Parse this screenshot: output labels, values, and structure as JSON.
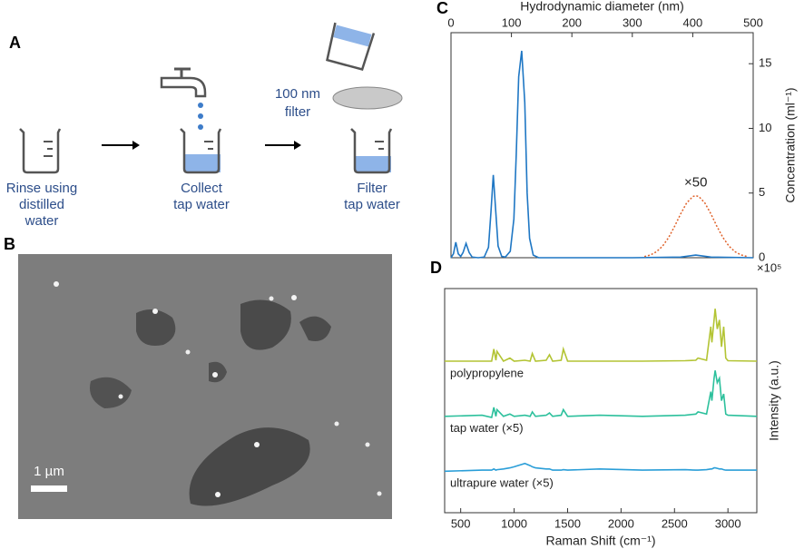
{
  "panel_a": {
    "letter": "A",
    "steps": [
      [
        "Rinse using",
        "distilled",
        "water"
      ],
      [
        "Collect",
        "tap water"
      ],
      [
        "Filter",
        "tap water"
      ]
    ],
    "filter_label": [
      "100 nm",
      "filter"
    ]
  },
  "panel_b": {
    "letter": "B",
    "scale_bar": "1 µm"
  },
  "chart_data": [
    {
      "type": "line",
      "panel": "C",
      "x_label": "Hydrodynamic diameter (nm)",
      "y_label": "Concentration (ml⁻¹)",
      "y_multiplier": "×10⁵",
      "annotation": "×50",
      "xlim": [
        0,
        500
      ],
      "xticks": [
        0,
        100,
        200,
        300,
        400,
        500
      ],
      "ylim": [
        0,
        17.4
      ],
      "yticks": [
        0,
        5,
        10,
        15
      ],
      "series": [
        {
          "color": "#1f77c4",
          "style": "solid",
          "x": [
            0,
            4,
            8,
            12,
            16,
            20,
            25,
            30,
            35,
            45,
            55,
            62,
            66,
            70,
            74,
            78,
            84,
            90,
            98,
            104,
            108,
            112,
            117,
            122,
            126,
            130,
            136,
            145,
            160,
            200,
            300,
            380,
            405,
            430,
            500
          ],
          "values": [
            0,
            0.3,
            1.2,
            0.3,
            0.1,
            0.4,
            1.1,
            0.4,
            0.05,
            0,
            0.05,
            0.8,
            3.5,
            6.4,
            3.6,
            0.9,
            0.1,
            0.05,
            0.5,
            3,
            8,
            14,
            16,
            12,
            5,
            1.5,
            0.2,
            0,
            0,
            0,
            0,
            0.05,
            0.2,
            0.05,
            0
          ]
        },
        {
          "color": "#e0622a",
          "style": "dotted",
          "x": [
            320,
            330,
            340,
            350,
            360,
            370,
            380,
            390,
            400,
            405,
            410,
            420,
            430,
            440,
            450,
            460,
            470,
            480,
            490
          ],
          "values": [
            0.09,
            0.21,
            0.46,
            0.89,
            1.56,
            2.43,
            3.39,
            4.24,
            4.73,
            4.8,
            4.73,
            4.24,
            3.39,
            2.43,
            1.56,
            0.89,
            0.46,
            0.21,
            0.09
          ]
        }
      ]
    },
    {
      "type": "line",
      "panel": "D",
      "x_label": "Raman Shift (cm⁻¹)",
      "y_label": "Intensity (a.u.)",
      "xlim": [
        350,
        3270
      ],
      "xticks": [
        500,
        1000,
        1500,
        2000,
        2500,
        3000
      ],
      "ylim": [
        0,
        10
      ],
      "x": [
        350,
        700,
        790,
        810,
        830,
        840,
        900,
        960,
        1000,
        1100,
        1150,
        1170,
        1200,
        1300,
        1330,
        1360,
        1440,
        1460,
        1500,
        1800,
        2200,
        2600,
        2700,
        2720,
        2800,
        2840,
        2850,
        2870,
        2880,
        2900,
        2920,
        2940,
        2960,
        2980,
        3000,
        3270
      ],
      "series": [
        {
          "name": "polypropylene",
          "color": "#b3c434",
          "values": [
            6.76,
            6.76,
            6.76,
            7.3,
            6.8,
            7.2,
            6.76,
            6.9,
            6.76,
            6.8,
            6.76,
            7.1,
            6.76,
            6.8,
            7.05,
            6.76,
            6.8,
            7.3,
            6.76,
            6.76,
            6.76,
            6.78,
            6.8,
            6.9,
            6.8,
            8.3,
            7.6,
            8.6,
            9.1,
            8.2,
            8.6,
            7.4,
            8.3,
            6.9,
            6.78,
            6.76
          ]
        },
        {
          "name": "tap water (×5)",
          "color": "#2cc09c",
          "values": [
            4.3,
            4.35,
            4.25,
            4.7,
            4.3,
            4.6,
            4.3,
            4.4,
            4.3,
            4.35,
            4.3,
            4.5,
            4.3,
            4.35,
            4.45,
            4.3,
            4.35,
            4.6,
            4.3,
            4.35,
            4.3,
            4.35,
            4.4,
            4.5,
            4.4,
            5.4,
            5.0,
            6.0,
            6.35,
            5.8,
            6.0,
            5.0,
            5.3,
            4.4,
            4.35,
            4.3
          ]
        },
        {
          "name": "ultrapure water (×5)",
          "color": "#2a9ed8",
          "values": [
            1.85,
            1.9,
            1.9,
            1.95,
            1.9,
            1.92,
            1.95,
            2.0,
            2.05,
            2.2,
            2.1,
            2.05,
            2.0,
            1.95,
            1.95,
            1.9,
            1.9,
            1.92,
            1.9,
            1.95,
            1.9,
            1.92,
            1.9,
            1.9,
            1.92,
            1.95,
            1.95,
            2.0,
            2.0,
            1.98,
            1.95,
            1.95,
            1.92,
            1.9,
            1.9,
            1.9
          ]
        }
      ]
    }
  ]
}
